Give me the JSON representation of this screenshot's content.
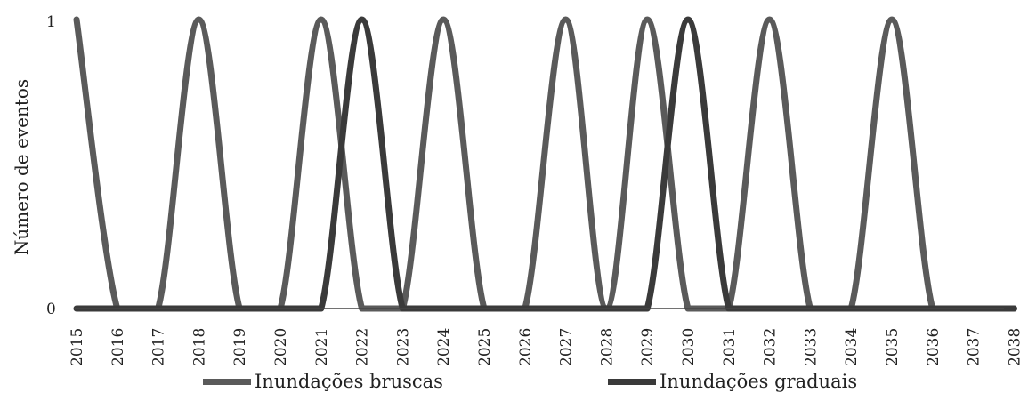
{
  "chart_data": {
    "type": "line",
    "ylabel": "Número de eventos",
    "ylim": [
      0,
      1
    ],
    "yticks": [
      "0",
      "1"
    ],
    "categories": [
      "2015",
      "2016",
      "2017",
      "2018",
      "2019",
      "2020",
      "2021",
      "2022",
      "2023",
      "2024",
      "2025",
      "2026",
      "2027",
      "2028",
      "2029",
      "2030",
      "2031",
      "2032",
      "2033",
      "2034",
      "2035",
      "2036",
      "2037",
      "2038"
    ],
    "series": [
      {
        "name": "Inundações bruscas",
        "color": "#5a5a5a",
        "values": [
          1,
          0,
          0,
          1,
          0,
          0,
          1,
          0,
          0,
          1,
          0,
          0,
          1,
          0,
          1,
          0,
          0,
          1,
          0,
          0,
          1,
          0,
          0,
          0
        ]
      },
      {
        "name": "Inundações graduais",
        "color": "#3a3a3a",
        "values": [
          0,
          0,
          0,
          0,
          0,
          0,
          0,
          1,
          0,
          0,
          0,
          0,
          0,
          0,
          0,
          1,
          0,
          0,
          0,
          0,
          0,
          0,
          0,
          0
        ]
      }
    ]
  }
}
